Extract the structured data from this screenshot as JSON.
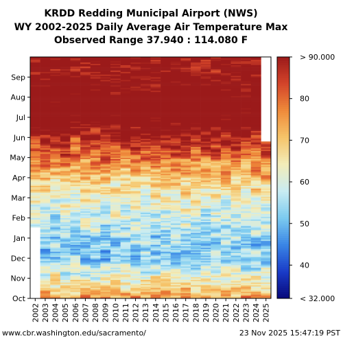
{
  "chart_data": {
    "type": "heatmap",
    "title": [
      "KRDD Redding Municipal Airport (NWS)",
      "WY 2002-2025 Daily Average Air Temperature Max",
      "Observed Range 37.940 : 114.080 F"
    ],
    "x_labels": [
      "2002",
      "2003",
      "2004",
      "2005",
      "2006",
      "2007",
      "2008",
      "2009",
      "2010",
      "2011",
      "2012",
      "2013",
      "2014",
      "2015",
      "2016",
      "2017",
      "2018",
      "2019",
      "2020",
      "2021",
      "2022",
      "2023",
      "2024",
      "2025"
    ],
    "y_labels": [
      "Oct",
      "Nov",
      "Dec",
      "Jan",
      "Feb",
      "Mar",
      "Apr",
      "May",
      "Jun",
      "Jul",
      "Aug",
      "Sep"
    ],
    "monthly_typical_max_F": [
      76,
      62,
      53,
      54,
      58,
      63,
      70,
      79,
      88,
      98,
      97,
      91
    ],
    "missing_note": "WY2002 has no data Oct-Jan; WY2025 data ends near end of May",
    "colorbar": {
      "min": 32,
      "max": 90,
      "tick_values": [
        40,
        50,
        60,
        70,
        80
      ],
      "tick_labels": [
        "40",
        "50",
        "60",
        "70",
        "80"
      ],
      "top_label": "> 90.000",
      "bottom_label": "< 32.000",
      "colors": [
        "#08087a",
        "#1a3cc8",
        "#3a86e6",
        "#7ccbf0",
        "#c9ecf2",
        "#f3ecb8",
        "#f6c46a",
        "#ef8a3a",
        "#d4442a",
        "#9b1a1a"
      ]
    }
  },
  "footer": {
    "source": "www.cbr.washington.edu/sacramento/",
    "timestamp": "23 Nov 2025 15:47:19 PST"
  }
}
